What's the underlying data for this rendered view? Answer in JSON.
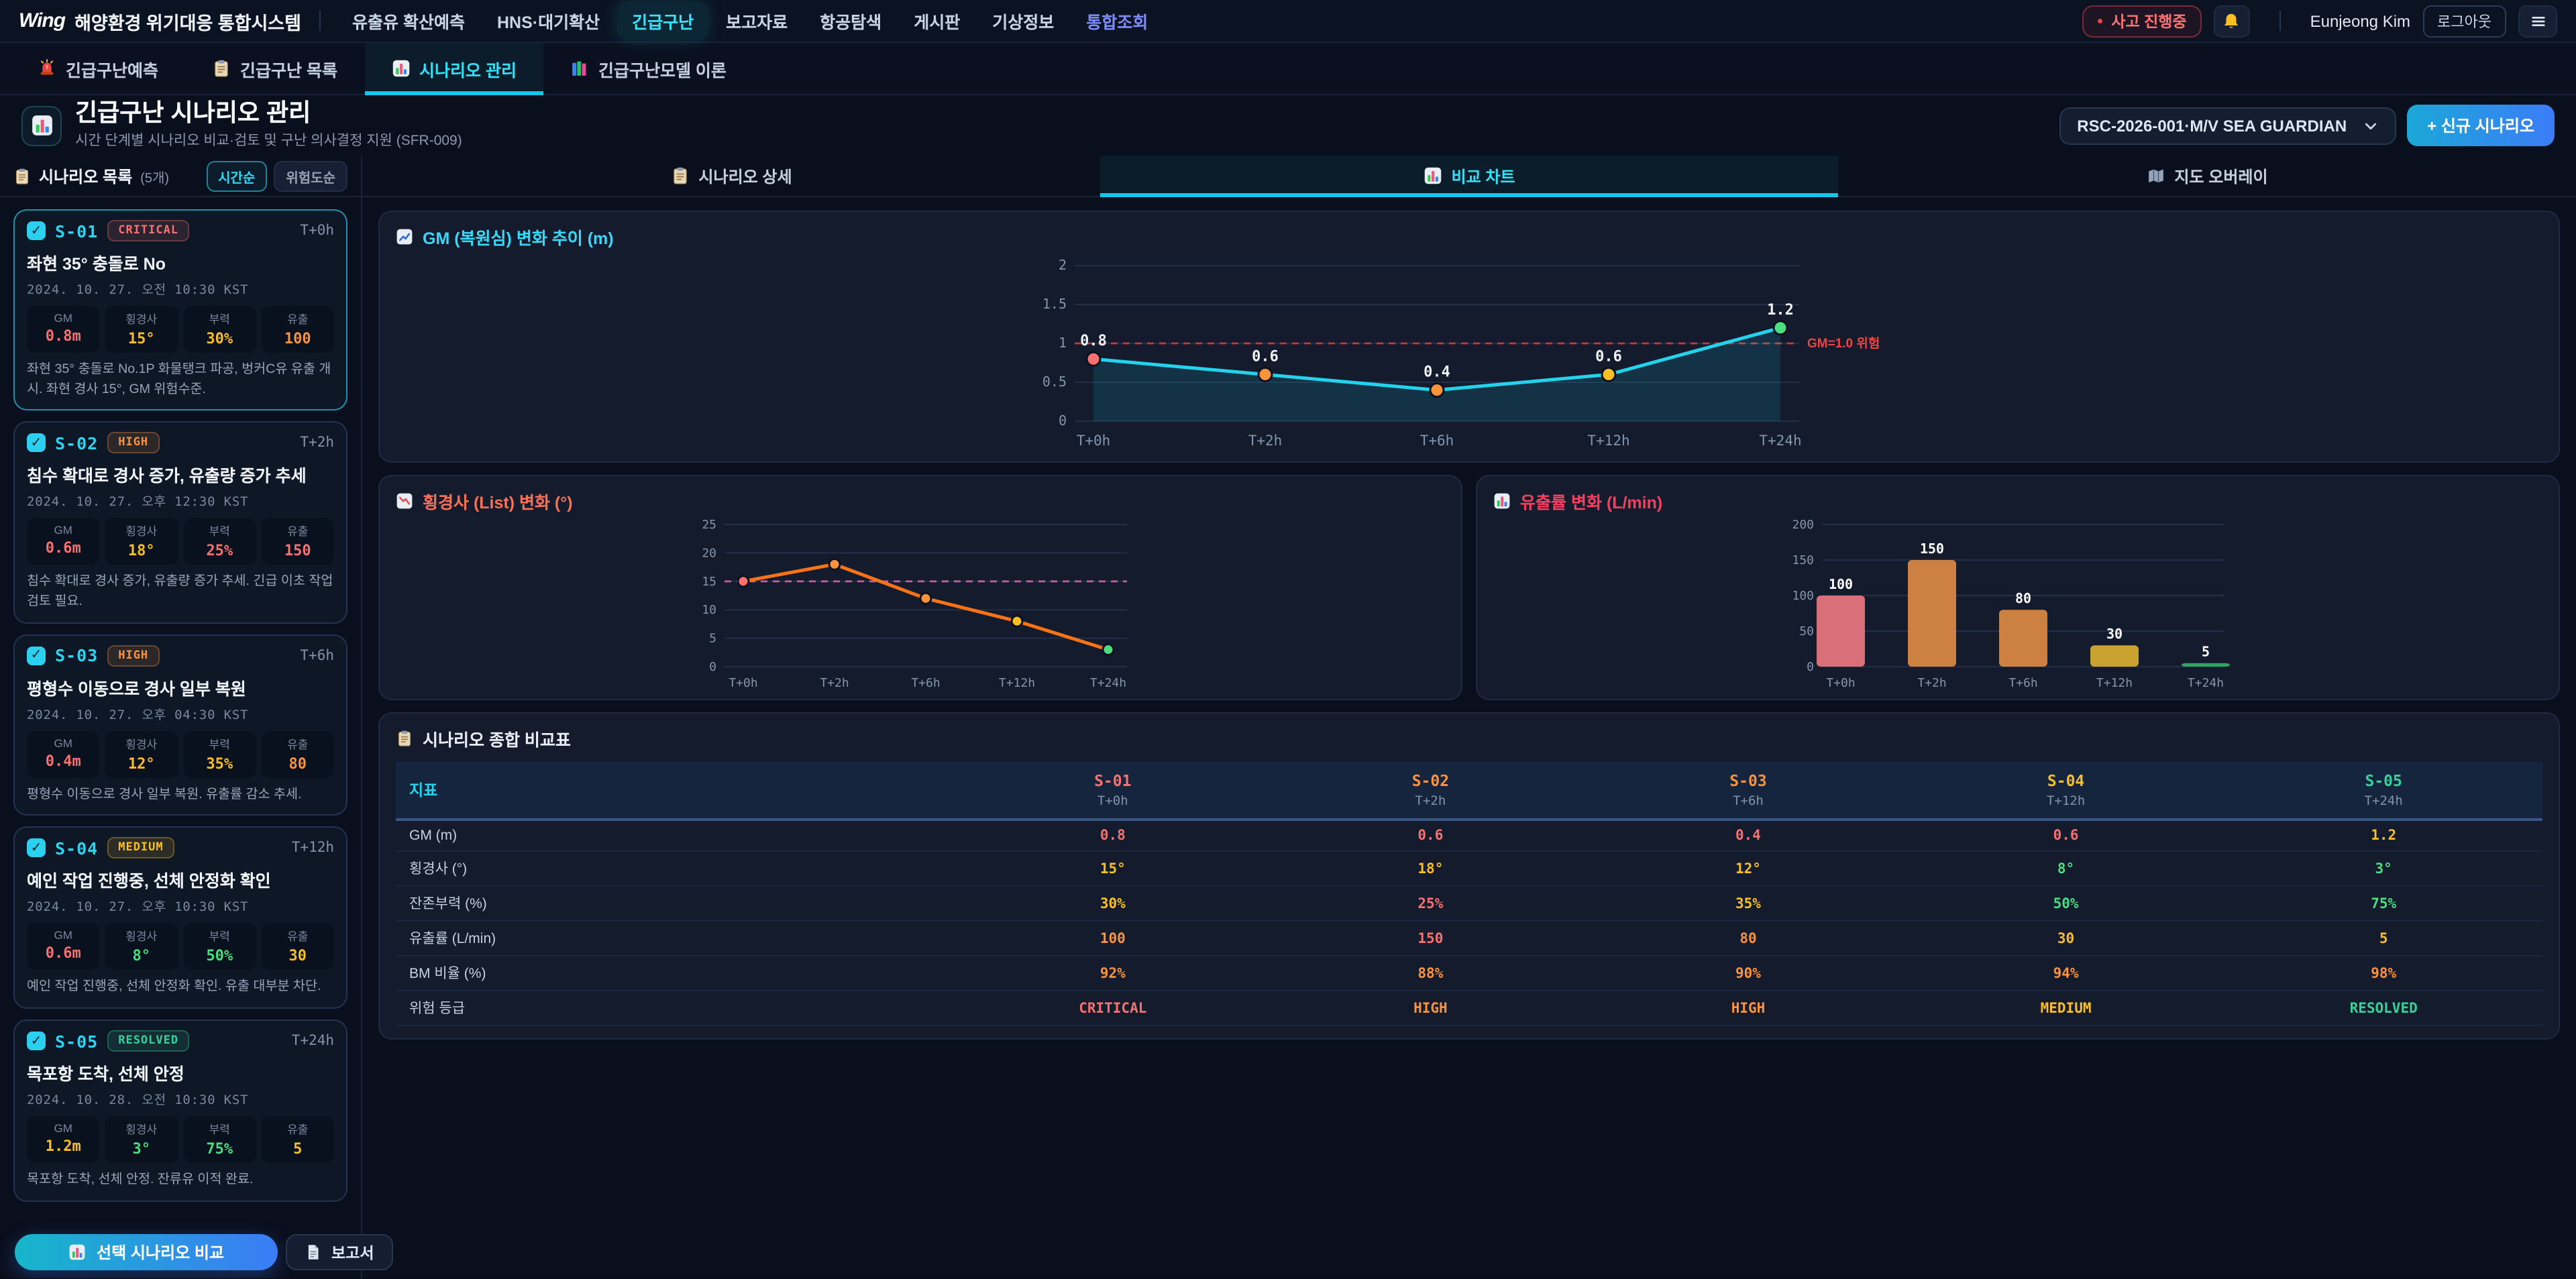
{
  "theme": {
    "accent": "#22d3ee",
    "critical": "#f87171",
    "high": "#fb923c",
    "medium": "#fbbf24",
    "resolved": "#34d399"
  },
  "header": {
    "logo_mark": "Wing",
    "logo_text": "해양환경 위기대응 통합시스템",
    "nav": [
      {
        "label": "유출유 확산예측"
      },
      {
        "label": "HNS·대기확산"
      },
      {
        "label": "긴급구난",
        "active": true
      },
      {
        "label": "보고자료"
      },
      {
        "label": "항공탐색"
      },
      {
        "label": "게시판"
      },
      {
        "label": "기상정보"
      },
      {
        "label": "통합조회",
        "accent": true
      }
    ],
    "incident_badge": "사고 진행중",
    "bell_icon": "bell-icon",
    "user_name": "Eunjeong Kim",
    "logout_label": "로그아웃",
    "menu_icon": "hamburger-icon"
  },
  "tabs": [
    {
      "icon": "siren-icon",
      "label": "긴급구난예측"
    },
    {
      "icon": "clipboard-icon",
      "label": "긴급구난 목록"
    },
    {
      "icon": "chart-bars-icon",
      "label": "시나리오 관리",
      "active": true
    },
    {
      "icon": "books-icon",
      "label": "긴급구난모델 이론"
    }
  ],
  "page": {
    "icon": "chart-bars-icon",
    "title": "긴급구난 시나리오 관리",
    "subtitle": "시간 단계별 시나리오 비교·검토 및 구난 의사결정 지원 (SFR-009)",
    "incident_select": "RSC-2026-001·M/V SEA GUARDIAN",
    "chevron_icon": "chevron-down-icon",
    "new_scenario_label": "+ 신규 시나리오"
  },
  "sidebar": {
    "icon": "clipboard-icon",
    "title": "시나리오 목록",
    "count": "(5개)",
    "sort": [
      {
        "label": "시간순",
        "active": true
      },
      {
        "label": "위험도순",
        "active": false
      }
    ],
    "scenarios": [
      {
        "id": "S-01",
        "severity": "CRITICAL",
        "time_offset": "T+0h",
        "selected": true,
        "title": "좌현 35° 충돌로 No",
        "datetime": "2024. 10. 27. 오전 10:30 KST",
        "metrics": [
          {
            "label": "GM",
            "value": "0.8m",
            "color": "#f87171"
          },
          {
            "label": "횡경사",
            "value": "15°",
            "color": "#fbbf24"
          },
          {
            "label": "부력",
            "value": "30%",
            "color": "#fbbf24"
          },
          {
            "label": "유출",
            "value": "100",
            "color": "#fb923c"
          }
        ],
        "description": "좌현 35° 충돌로 No.1P 화물탱크 파공, 벙커C유 유출 개시. 좌현 경사 15°, GM 위험수준."
      },
      {
        "id": "S-02",
        "severity": "HIGH",
        "time_offset": "T+2h",
        "selected": false,
        "title": "침수 확대로 경사 증가, 유출량 증가 추세",
        "datetime": "2024. 10. 27. 오후 12:30 KST",
        "metrics": [
          {
            "label": "GM",
            "value": "0.6m",
            "color": "#f87171"
          },
          {
            "label": "횡경사",
            "value": "18°",
            "color": "#fbbf24"
          },
          {
            "label": "부력",
            "value": "25%",
            "color": "#f87171"
          },
          {
            "label": "유출",
            "value": "150",
            "color": "#f87171"
          }
        ],
        "description": "침수 확대로 경사 증가, 유출량 증가 추세. 긴급 이초 작업 검토 필요."
      },
      {
        "id": "S-03",
        "severity": "HIGH",
        "time_offset": "T+6h",
        "selected": false,
        "title": "평형수 이동으로 경사 일부 복원",
        "datetime": "2024. 10. 27. 오후 04:30 KST",
        "metrics": [
          {
            "label": "GM",
            "value": "0.4m",
            "color": "#f87171"
          },
          {
            "label": "횡경사",
            "value": "12°",
            "color": "#fbbf24"
          },
          {
            "label": "부력",
            "value": "35%",
            "color": "#fbbf24"
          },
          {
            "label": "유출",
            "value": "80",
            "color": "#fb923c"
          }
        ],
        "description": "평형수 이동으로 경사 일부 복원. 유출률 감소 추세."
      },
      {
        "id": "S-04",
        "severity": "MEDIUM",
        "time_offset": "T+12h",
        "selected": false,
        "title": "예인 작업 진행중, 선체 안정화 확인",
        "datetime": "2024. 10. 27. 오후 10:30 KST",
        "metrics": [
          {
            "label": "GM",
            "value": "0.6m",
            "color": "#f87171"
          },
          {
            "label": "횡경사",
            "value": "8°",
            "color": "#4ade80"
          },
          {
            "label": "부력",
            "value": "50%",
            "color": "#4ade80"
          },
          {
            "label": "유출",
            "value": "30",
            "color": "#fbbf24"
          }
        ],
        "description": "예인 작업 진행중, 선체 안정화 확인. 유출 대부분 차단."
      },
      {
        "id": "S-05",
        "severity": "RESOLVED",
        "time_offset": "T+24h",
        "selected": false,
        "title": "목포항 도착, 선체 안정",
        "datetime": "2024. 10. 28. 오전 10:30 KST",
        "metrics": [
          {
            "label": "GM",
            "value": "1.2m",
            "color": "#fbbf24"
          },
          {
            "label": "횡경사",
            "value": "3°",
            "color": "#4ade80"
          },
          {
            "label": "부력",
            "value": "75%",
            "color": "#4ade80"
          },
          {
            "label": "유출",
            "value": "5",
            "color": "#fbbf24"
          }
        ],
        "description": "목포항 도착, 선체 안정. 잔류유 이적 완료."
      }
    ]
  },
  "main": {
    "view_tabs": [
      {
        "icon": "clipboard-icon",
        "label": "시나리오 상세"
      },
      {
        "icon": "chart-bars-icon",
        "label": "비교 차트",
        "active": true
      },
      {
        "icon": "map-icon",
        "label": "지도 오버레이"
      }
    ]
  },
  "chart_data": [
    {
      "type": "line",
      "icon": "chart-up-icon",
      "title": "GM (복원심) 변화 추이 (m)",
      "accent": "#38d9f8",
      "x": [
        "T+0h",
        "T+2h",
        "T+6h",
        "T+12h",
        "T+24h"
      ],
      "values": [
        0.8,
        0.6,
        0.4,
        0.6,
        1.2
      ],
      "point_colors": [
        "#f87171",
        "#fb923c",
        "#fb923c",
        "#fbbf24",
        "#4ade80"
      ],
      "line_color": "#22d3ee",
      "area": true,
      "show_value_labels": true,
      "ylim": [
        0,
        2
      ],
      "yticks": [
        0,
        0.5,
        1,
        1.5,
        2
      ],
      "threshold": {
        "value": 1.0,
        "label": "GM=1.0 위험",
        "color": "#ef4444"
      }
    },
    {
      "type": "line",
      "icon": "chart-down-icon",
      "title": "횡경사 (List) 변화 (°)",
      "accent": "#f87156",
      "x": [
        "T+0h",
        "T+2h",
        "T+6h",
        "T+12h",
        "T+24h"
      ],
      "values": [
        15,
        18,
        12,
        8,
        3
      ],
      "point_colors": [
        "#f87171",
        "#fb923c",
        "#fb923c",
        "#fbbf24",
        "#4ade80"
      ],
      "line_color": "#f97316",
      "area": false,
      "show_value_labels": false,
      "ylim": [
        0,
        25
      ],
      "yticks": [
        0,
        5,
        10,
        15,
        20,
        25
      ],
      "threshold": {
        "value": 15,
        "color": "#f472b6"
      }
    },
    {
      "type": "bar",
      "icon": "chart-bars-icon",
      "title": "유출률 변화 (L/min)",
      "accent": "#f43f5e",
      "x": [
        "T+0h",
        "T+2h",
        "T+6h",
        "T+12h",
        "T+24h"
      ],
      "values": [
        100,
        150,
        80,
        30,
        5
      ],
      "bar_colors": [
        "#d97079",
        "#cc8142",
        "#cc8142",
        "#c9a22f",
        "#2ea45f"
      ],
      "show_value_labels": true,
      "ylim": [
        0,
        200
      ],
      "yticks": [
        0,
        50,
        100,
        150,
        200
      ]
    }
  ],
  "comparison_table": {
    "icon": "clipboard-icon",
    "title": "시나리오 종합 비교표",
    "header": {
      "metric_col": "지표",
      "columns": [
        {
          "id": "S-01",
          "time": "T+0h",
          "color": "#f87171"
        },
        {
          "id": "S-02",
          "time": "T+2h",
          "color": "#fb923c"
        },
        {
          "id": "S-03",
          "time": "T+6h",
          "color": "#fb923c"
        },
        {
          "id": "S-04",
          "time": "T+12h",
          "color": "#fbbf24"
        },
        {
          "id": "S-05",
          "time": "T+24h",
          "color": "#34d399"
        }
      ]
    },
    "rows": [
      {
        "label": "GM (m)",
        "cells": [
          {
            "text": "0.8",
            "color": "#f87171"
          },
          {
            "text": "0.6",
            "color": "#f87171"
          },
          {
            "text": "0.4",
            "color": "#f87171"
          },
          {
            "text": "0.6",
            "color": "#f87171"
          },
          {
            "text": "1.2",
            "color": "#fbbf24"
          }
        ]
      },
      {
        "label": "횡경사 (°)",
        "cells": [
          {
            "text": "15°",
            "color": "#fbbf24"
          },
          {
            "text": "18°",
            "color": "#fbbf24"
          },
          {
            "text": "12°",
            "color": "#fbbf24"
          },
          {
            "text": "8°",
            "color": "#4ade80"
          },
          {
            "text": "3°",
            "color": "#4ade80"
          }
        ]
      },
      {
        "label": "잔존부력 (%)",
        "cells": [
          {
            "text": "30%",
            "color": "#fbbf24"
          },
          {
            "text": "25%",
            "color": "#f87171"
          },
          {
            "text": "35%",
            "color": "#fbbf24"
          },
          {
            "text": "50%",
            "color": "#4ade80"
          },
          {
            "text": "75%",
            "color": "#4ade80"
          }
        ]
      },
      {
        "label": "유출률 (L/min)",
        "cells": [
          {
            "text": "100",
            "color": "#fb923c"
          },
          {
            "text": "150",
            "color": "#f87171"
          },
          {
            "text": "80",
            "color": "#fb923c"
          },
          {
            "text": "30",
            "color": "#fbbf24"
          },
          {
            "text": "5",
            "color": "#fbbf24"
          }
        ]
      },
      {
        "label": "BM 비율 (%)",
        "cells": [
          {
            "text": "92%",
            "color": "#fb923c"
          },
          {
            "text": "88%",
            "color": "#fb923c"
          },
          {
            "text": "90%",
            "color": "#fb923c"
          },
          {
            "text": "94%",
            "color": "#fb923c"
          },
          {
            "text": "98%",
            "color": "#fb923c"
          }
        ]
      },
      {
        "label": "위험 등급",
        "cells": [
          {
            "text": "CRITICAL",
            "color": "#f87171"
          },
          {
            "text": "HIGH",
            "color": "#fb923c"
          },
          {
            "text": "HIGH",
            "color": "#fb923c"
          },
          {
            "text": "MEDIUM",
            "color": "#fbbf24"
          },
          {
            "text": "RESOLVED",
            "color": "#34d399"
          }
        ]
      }
    ]
  },
  "footer": {
    "compare_icon": "chart-bars-icon",
    "compare_label": "선택 시나리오 비교",
    "report_icon": "doc-icon",
    "report_label": "보고서"
  }
}
